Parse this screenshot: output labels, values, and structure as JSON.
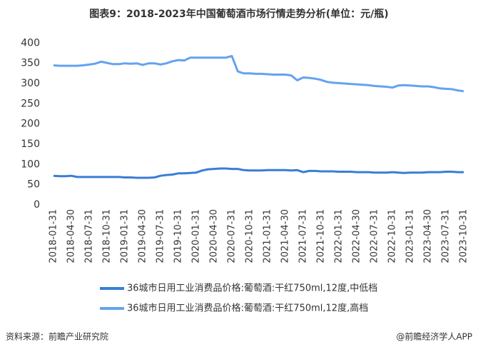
{
  "chart_data": {
    "type": "line",
    "title": "图表9：2018-2023年中国葡萄酒市场行情走势分析(单位：元/瓶)",
    "categories": [
      "2018-01-31",
      null,
      null,
      "2018-04-30",
      null,
      null,
      "2018-07-31",
      null,
      null,
      "2018-10-31",
      null,
      null,
      "2019-01-31",
      null,
      null,
      "2019-04-30",
      null,
      null,
      "2019-07-31",
      null,
      null,
      "2019-10-31",
      null,
      null,
      "2020-01-31",
      null,
      null,
      "2020-04-30",
      null,
      null,
      "2020-07-31",
      null,
      null,
      "2020-10-31",
      null,
      null,
      "2021-01-31",
      null,
      null,
      "2021-04-30",
      null,
      null,
      "2021-07-31",
      null,
      null,
      "2021-10-31",
      null,
      null,
      "2022-01-31",
      null,
      null,
      "2022-04-30",
      null,
      null,
      "2022-07-31",
      null,
      null,
      "2022-10-31",
      null,
      null,
      "2023-01-31",
      null,
      null,
      "2023-04-30",
      null,
      null,
      "2023-07-31",
      null,
      null,
      "2023-10-31"
    ],
    "series": [
      {
        "name": "36城市日用工业消费品价格:葡萄酒:干红750ml,12度,中低档",
        "color": "#3a7dd6",
        "values": [
          72,
          71,
          71,
          72,
          69,
          69,
          69,
          69,
          69,
          69,
          69,
          69,
          68,
          68,
          67,
          67,
          67,
          68,
          72,
          74,
          75,
          78,
          78,
          79,
          80,
          85,
          88,
          89,
          90,
          90,
          89,
          89,
          86,
          85,
          85,
          85,
          86,
          86,
          86,
          86,
          85,
          86,
          81,
          84,
          84,
          83,
          83,
          83,
          82,
          82,
          82,
          81,
          81,
          81,
          80,
          80,
          80,
          81,
          80,
          79,
          80,
          80,
          80,
          81,
          81,
          81,
          82,
          82,
          81,
          81
        ]
      },
      {
        "name": "36城市日用工业消费品价格:葡萄酒:干红750ml,12度,高档",
        "color": "#63a3ee",
        "values": [
          345,
          344,
          344,
          344,
          344,
          345,
          347,
          349,
          354,
          351,
          348,
          348,
          350,
          349,
          350,
          346,
          350,
          350,
          347,
          350,
          355,
          358,
          357,
          364,
          364,
          364,
          364,
          364,
          364,
          364,
          368,
          330,
          325,
          325,
          324,
          324,
          323,
          322,
          322,
          322,
          320,
          308,
          315,
          314,
          312,
          309,
          304,
          302,
          301,
          300,
          299,
          298,
          297,
          296,
          294,
          293,
          292,
          290,
          295,
          296,
          295,
          294,
          293,
          293,
          291,
          288,
          287,
          286,
          283,
          281
        ]
      }
    ],
    "ylim": [
      0,
      420
    ],
    "yticks": [
      0,
      50,
      100,
      150,
      200,
      250,
      300,
      350,
      400
    ],
    "grid": false,
    "legend": "bottom",
    "source": "资料来源：前瞻产业研究院",
    "credit": "@前瞻经济学人APP"
  }
}
